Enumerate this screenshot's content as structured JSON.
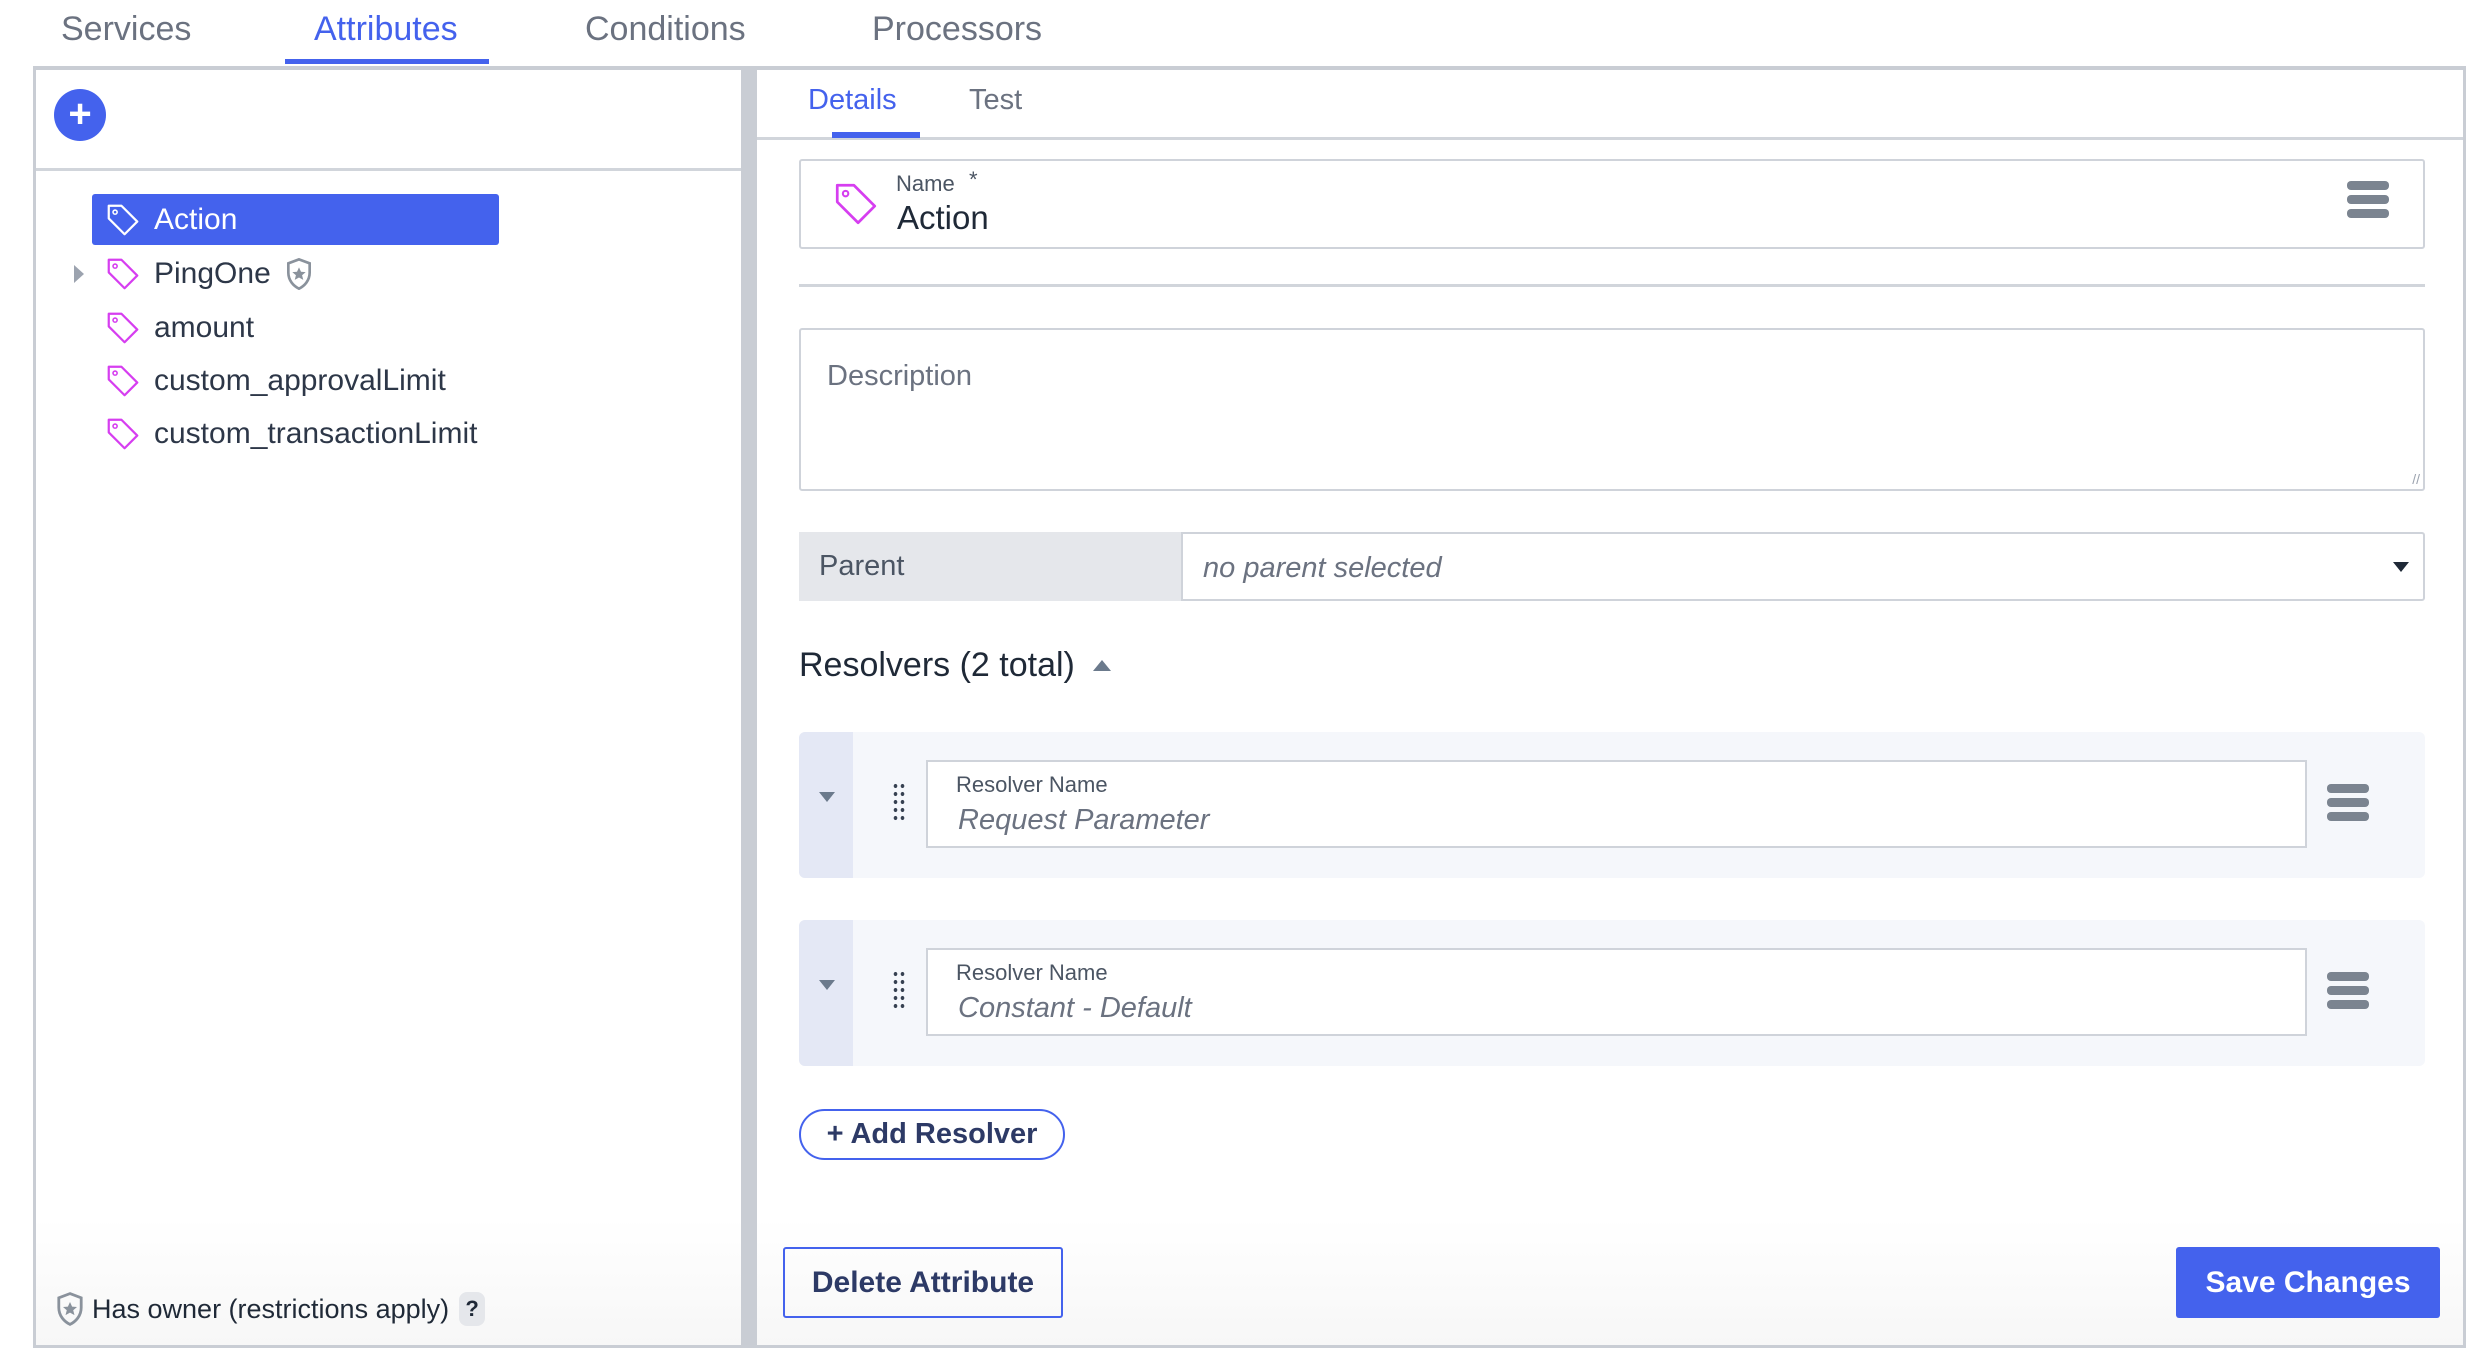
{
  "top_tabs": [
    {
      "label": "Services"
    },
    {
      "label": "Attributes",
      "active": true
    },
    {
      "label": "Conditions"
    },
    {
      "label": "Processors"
    }
  ],
  "left_panel": {
    "add_button": "+",
    "tree": [
      {
        "label": "Action",
        "selected": true,
        "icon": "tag-icon"
      },
      {
        "label": "PingOne",
        "expandable": true,
        "owner_badge": "shield-star-icon",
        "icon": "tag-icon"
      },
      {
        "label": "amount",
        "icon": "tag-icon"
      },
      {
        "label": "custom_approvalLimit",
        "icon": "tag-icon"
      },
      {
        "label": "custom_transactionLimit",
        "icon": "tag-icon"
      }
    ],
    "footer": {
      "text": "Has owner (restrictions apply)",
      "help": "?"
    }
  },
  "detail_tabs": [
    {
      "label": "Details",
      "active": true
    },
    {
      "label": "Test"
    }
  ],
  "form": {
    "name_label": "Name",
    "required_mark": "*",
    "name_value": "Action",
    "description_placeholder": "Description",
    "parent_label": "Parent",
    "parent_value": "no parent selected",
    "resolvers_heading": "Resolvers (2 total)",
    "resolvers": [
      {
        "label": "Resolver Name",
        "value": "Request Parameter"
      },
      {
        "label": "Resolver Name",
        "value": "Constant - Default"
      }
    ],
    "add_resolver": "+ Add Resolver"
  },
  "actions": {
    "delete": "Delete Attribute",
    "save": "Save Changes"
  },
  "colors": {
    "accent": "#4462ed",
    "tag": "#d63ef0",
    "border": "#c9cdd4"
  }
}
